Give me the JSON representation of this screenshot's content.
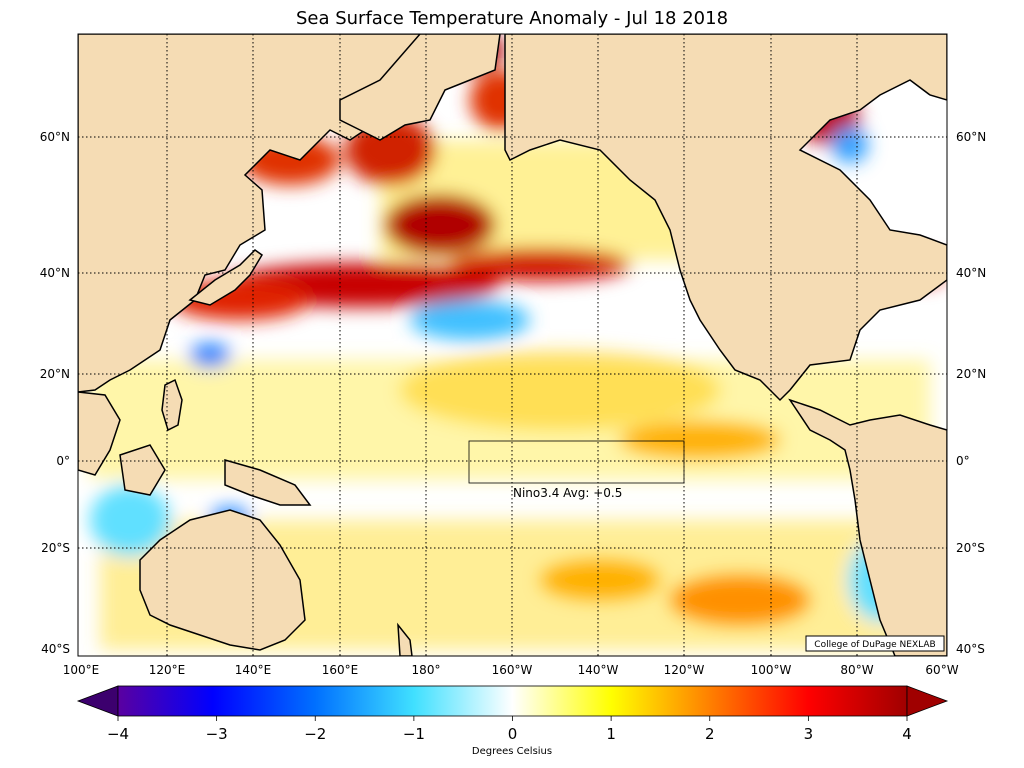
{
  "title": "Sea Surface Temperature Anomaly - Jul 18 2018",
  "credit": "College of DuPage NEXLAB",
  "nino_label": "Nino3.4 Avg: +0.5",
  "lat_labels": [
    "60°N",
    "40°N",
    "20°N",
    "0°",
    "20°S",
    "40°S"
  ],
  "lon_labels": [
    "100°E",
    "120°E",
    "140°E",
    "160°E",
    "180°",
    "160°W",
    "140°W",
    "120°W",
    "100°W",
    "80°W",
    "60°W"
  ],
  "colorbar": {
    "ticks": [
      "−4",
      "−3",
      "−2",
      "−1",
      "0",
      "1",
      "2",
      "3",
      "4"
    ],
    "label": "Degrees Celsius",
    "range": [
      -4,
      4
    ]
  },
  "colors": {
    "land": "#f5dcb4",
    "ocean_neutral": "#ffffff",
    "cold_extreme": "#3c006e",
    "warm_extreme": "#a00000"
  }
}
